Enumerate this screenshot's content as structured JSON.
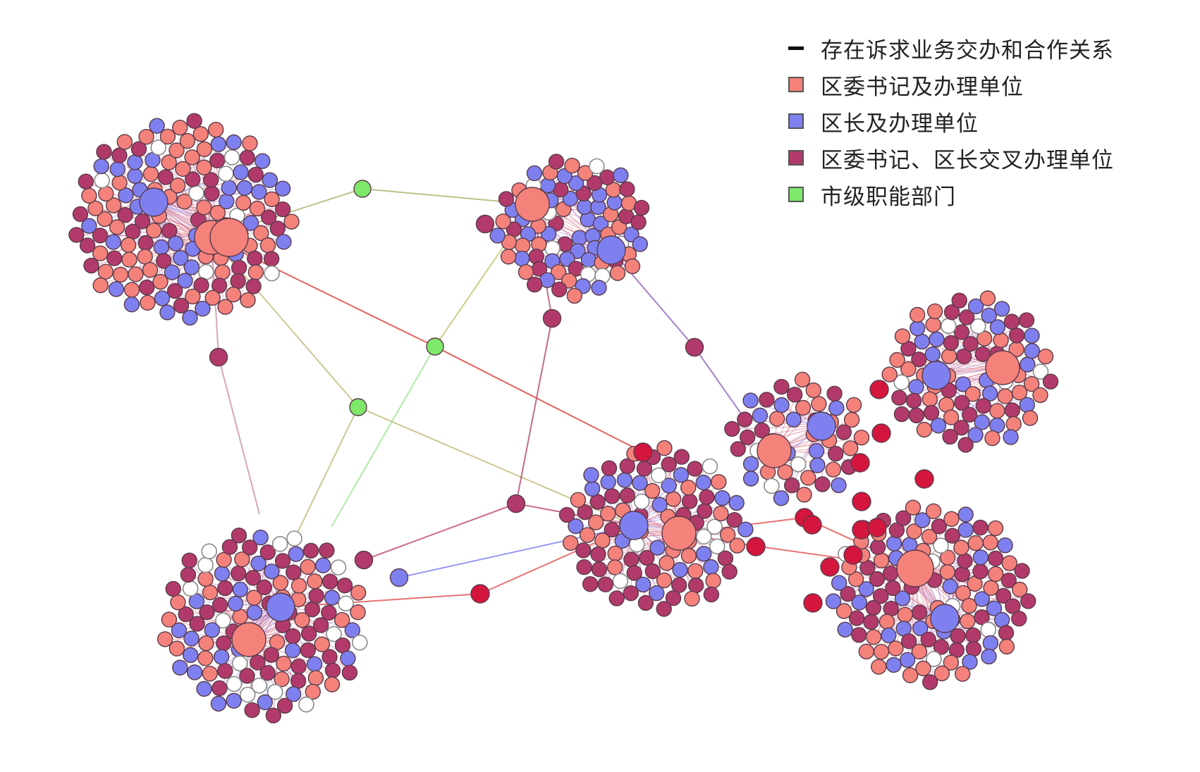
{
  "legend": {
    "edge_label": "存在诉求业务交办和合作关系",
    "items": [
      {
        "key": "secretary",
        "label": "区委书记及办理单位",
        "color": "#f4827b"
      },
      {
        "key": "mayor",
        "label": "区长及办理单位",
        "color": "#7f80f0"
      },
      {
        "key": "cross",
        "label": "区委书记、区长交叉办理单位",
        "color": "#b23a6b"
      },
      {
        "key": "city",
        "label": "市级职能部门",
        "color": "#7de86a"
      }
    ]
  },
  "node_colors": {
    "secretary": "#f4827b",
    "mayor": "#7f80f0",
    "cross": "#b23a6b",
    "city": "#7de86a",
    "bridge": "#d4163e",
    "empty": "#ffffff"
  }
}
